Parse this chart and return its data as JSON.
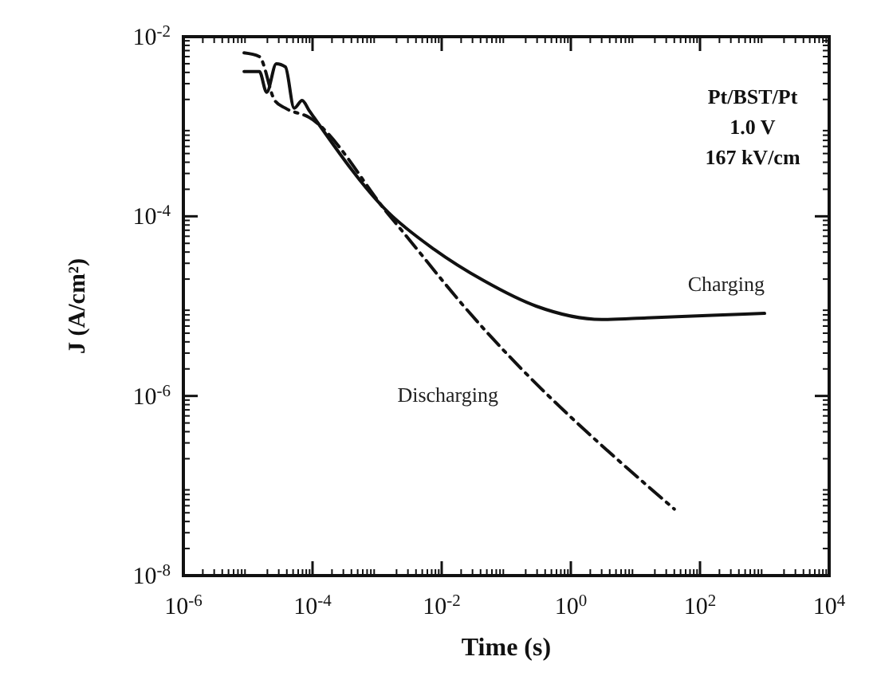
{
  "chart_data": {
    "type": "line",
    "xlabel": "Time (s)",
    "ylabel": "J (A/cm²)",
    "log": "xy",
    "xlim": [
      1e-06,
      10000
    ],
    "ylim": [
      1e-08,
      0.01
    ],
    "xticks": [
      {
        "value": 1e-06,
        "label": "10$^{-6}$"
      },
      {
        "value": 0.0001,
        "label": "10$^{-4}$"
      },
      {
        "value": 0.01,
        "label": "10$^{-2}$"
      },
      {
        "value": 1,
        "label": "10$^{0}$"
      },
      {
        "value": 100,
        "label": "10$^{2}$"
      },
      {
        "value": 10000,
        "label": "10$^{4}$"
      }
    ],
    "yticks": [
      {
        "value": 1e-08,
        "label": "10$^{-8}$"
      },
      {
        "value": 1e-06,
        "label": "10$^{-6}$"
      },
      {
        "value": 0.0001,
        "label": "10$^{-4}$"
      },
      {
        "value": 0.01,
        "label": "10$^{-2}$"
      }
    ],
    "grid": false,
    "marker": "none",
    "annotations": [
      "Pt/BST/Pt",
      "1.0 V",
      "167 kV/cm"
    ],
    "series": [
      {
        "name": "Charging",
        "color": "#111111",
        "line_style": "solid",
        "x": [
          8.7e-06,
          1.5e-05,
          1.95e-05,
          2.75e-05,
          3.8e-05,
          5.2e-05,
          6.9e-05,
          8.9e-05,
          0.0015,
          0.0076,
          0.046,
          0.29,
          3,
          15,
          155,
          1000
        ],
        "values": [
          0.0041,
          0.0041,
          0.0024,
          0.005,
          0.0046,
          0.0016,
          0.00195,
          0.0015,
          0.00011,
          4.3e-05,
          1.9e-05,
          1e-05,
          7.1e-06,
          7.4e-06,
          7.9e-06,
          8.3e-06
        ]
      },
      {
        "name": "Discharging",
        "color": "#111111",
        "line_style": "dashdot",
        "x": [
          8.7e-06,
          1.5e-05,
          2.6e-05,
          3.8e-05,
          8.9e-05,
          0.0015,
          0.0026,
          0.022,
          40
        ],
        "values": [
          0.0066,
          0.006,
          0.00195,
          0.0016,
          0.00126,
          0.000105,
          6.5e-05,
          1e-05,
          5.5e-08
        ]
      }
    ]
  }
}
